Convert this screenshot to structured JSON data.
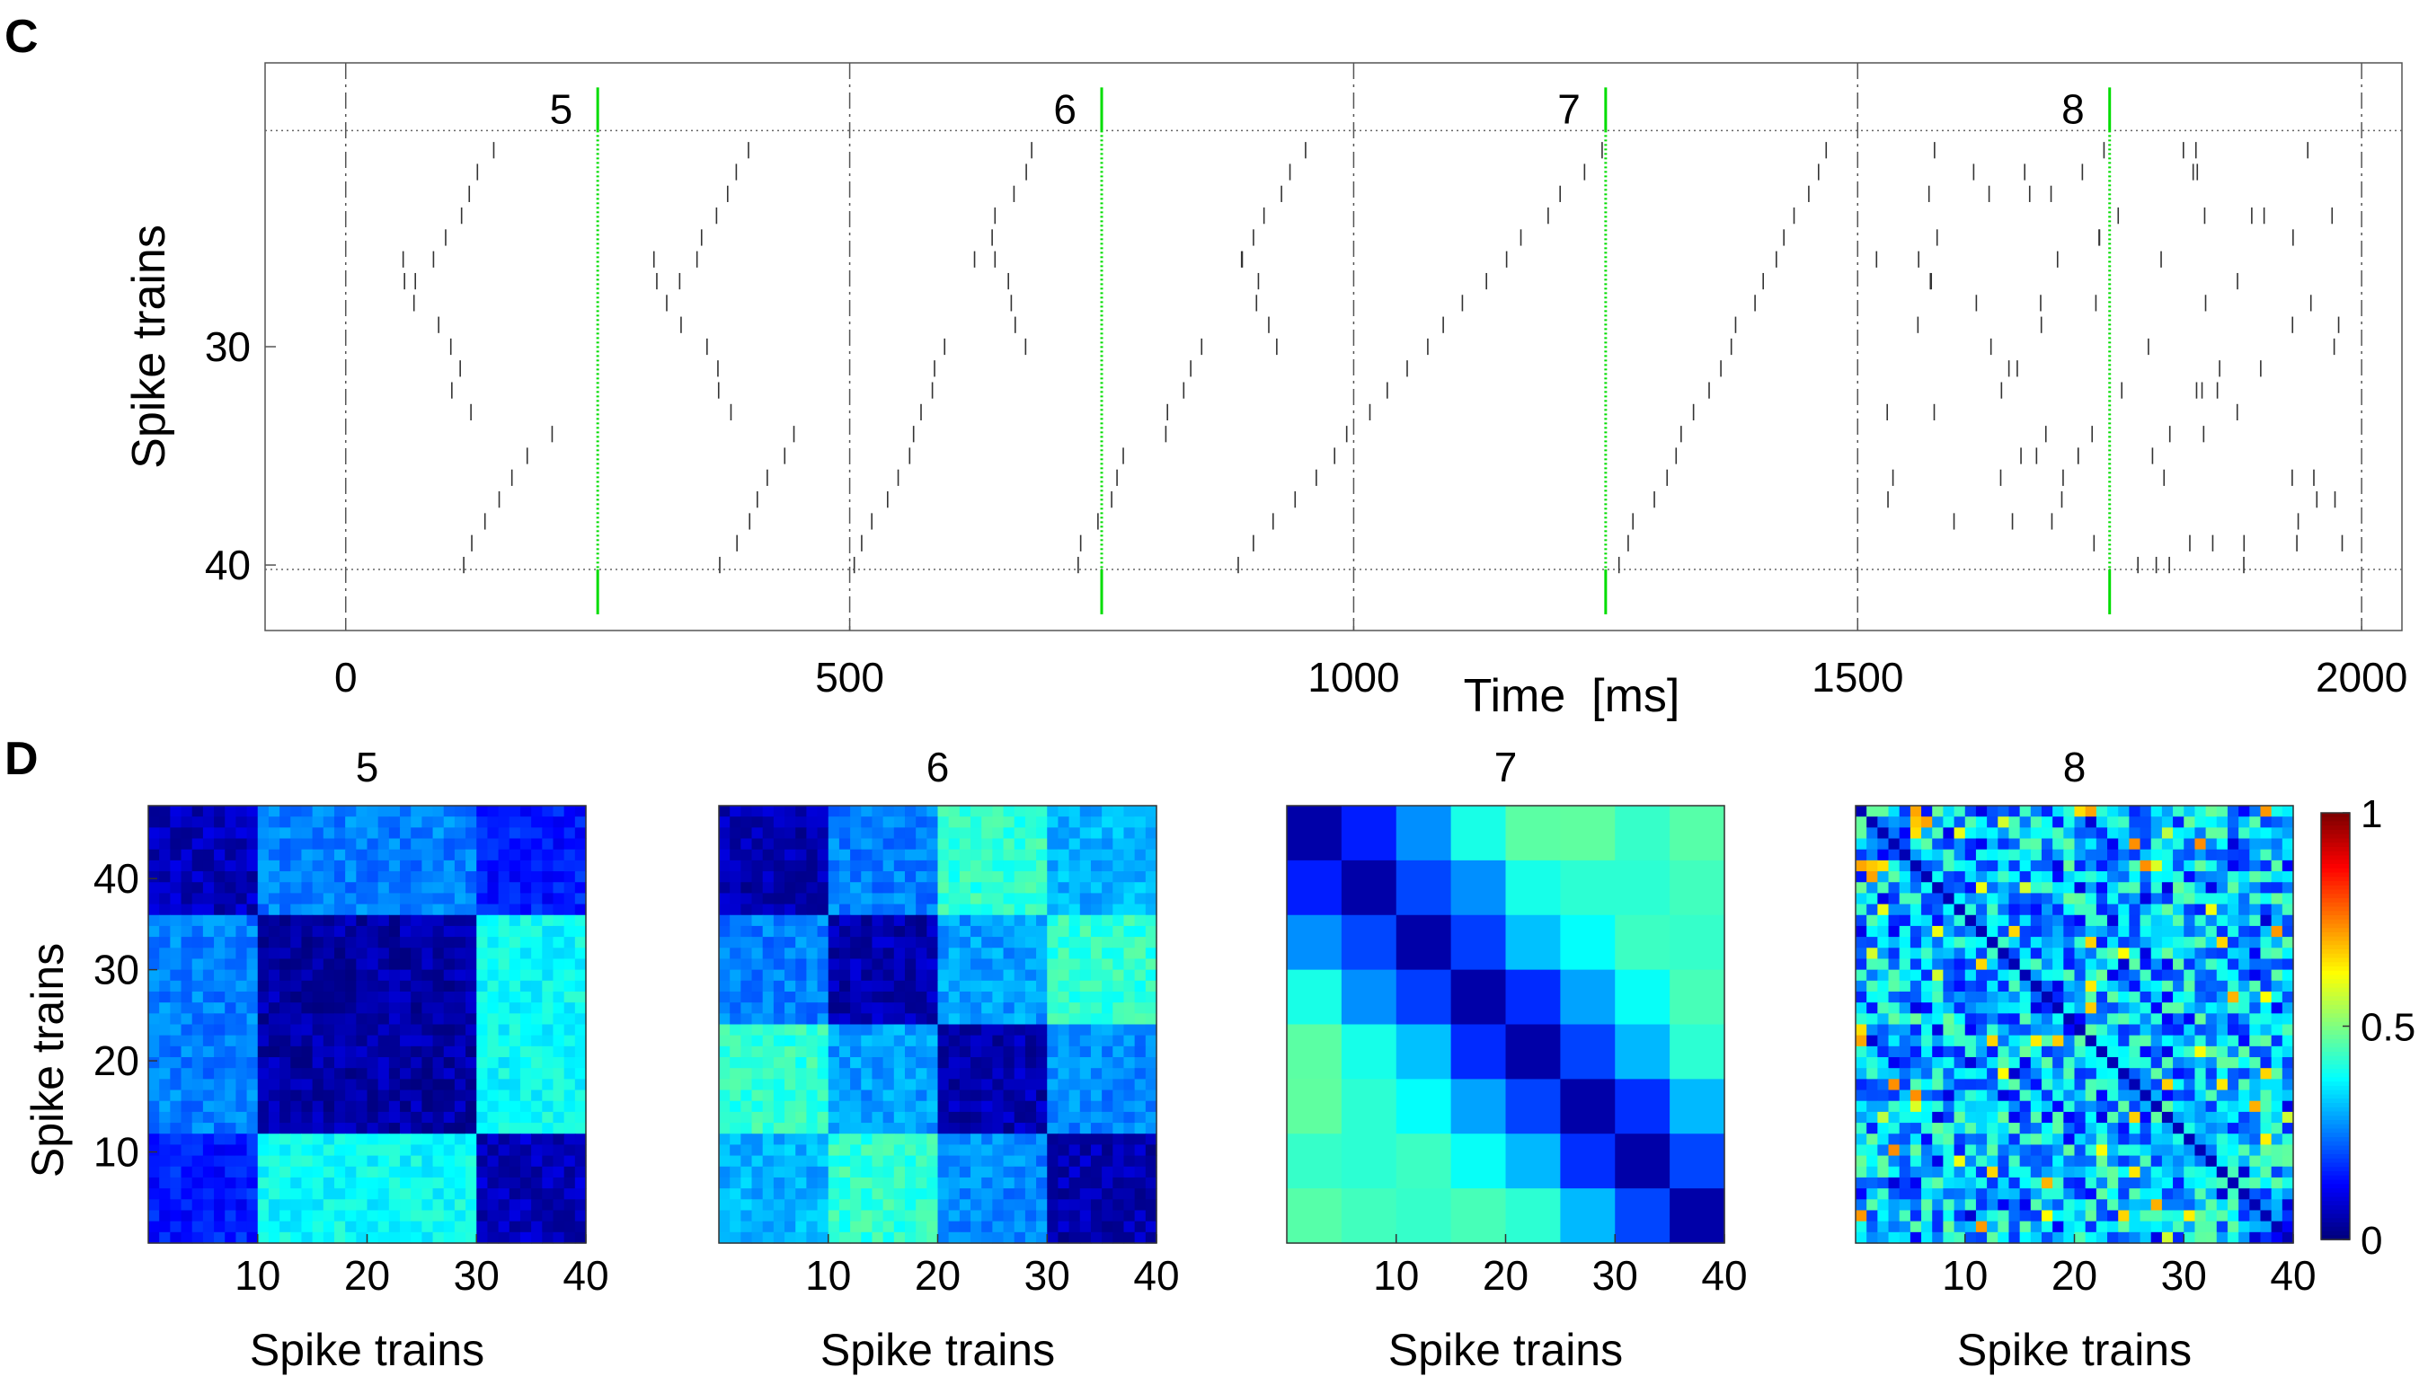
{
  "panels": {
    "c_label": "C",
    "d_label": "D"
  },
  "chart_data": [
    {
      "type": "scatter",
      "subtype": "raster",
      "panel": "C",
      "title": "",
      "xlabel": "Time  [ms]",
      "ylabel": "Spike trains",
      "xlim": [
        -80,
        2040
      ],
      "ylim": [
        43,
        17
      ],
      "xticks": [
        0,
        500,
        1000,
        1500,
        2000
      ],
      "yticks": [
        30,
        40
      ],
      "window_boundaries": [
        0,
        500,
        1000,
        1500,
        2000
      ],
      "row_range": [
        21,
        40
      ],
      "window_markers": [
        {
          "label": "5",
          "t": 250
        },
        {
          "label": "6",
          "t": 750
        },
        {
          "label": "7",
          "t": 1250
        },
        {
          "label": "8",
          "t": 1750
        }
      ],
      "marker_color": "#00dd00",
      "spike_color": "#333333"
    },
    {
      "type": "heatmap",
      "panel": "D",
      "title": "5",
      "xlabel": "Spike trains",
      "ylabel": "Spike trains",
      "n": 40,
      "xticks": [
        10,
        20,
        30,
        40
      ],
      "yticks": [
        10,
        20,
        30,
        40
      ],
      "groups": [
        10,
        20,
        10
      ],
      "group_values": [
        [
          0.06,
          0.25,
          0.15
        ],
        [
          0.25,
          0.04,
          0.38
        ],
        [
          0.15,
          0.38,
          0.06
        ]
      ]
    },
    {
      "type": "heatmap",
      "panel": "D",
      "title": "6",
      "xlabel": "Spike trains",
      "ylabel": "",
      "n": 40,
      "xticks": [
        10,
        20,
        30,
        40
      ],
      "yticks": [],
      "groups": [
        10,
        10,
        10,
        10
      ],
      "group_values": [
        [
          0.05,
          0.25,
          0.42,
          0.3
        ],
        [
          0.25,
          0.05,
          0.28,
          0.42
        ],
        [
          0.42,
          0.28,
          0.05,
          0.26
        ],
        [
          0.3,
          0.42,
          0.26,
          0.05
        ]
      ]
    },
    {
      "type": "heatmap",
      "panel": "D",
      "title": "7",
      "xlabel": "Spike trains",
      "ylabel": "",
      "n": 8,
      "xticks": [
        10,
        20,
        30,
        40
      ],
      "yticks": [],
      "block_pattern": "distance"
    },
    {
      "type": "heatmap",
      "panel": "D",
      "title": "8",
      "xlabel": "Spike trains",
      "ylabel": "",
      "n": 40,
      "xticks": [
        10,
        20,
        30,
        40
      ],
      "yticks": [],
      "block_pattern": "random",
      "colorbar": {
        "min": 0,
        "max": 1,
        "ticks": [
          0,
          0.5,
          1
        ],
        "tick_labels": [
          "0",
          "0.5",
          "1"
        ]
      }
    }
  ]
}
